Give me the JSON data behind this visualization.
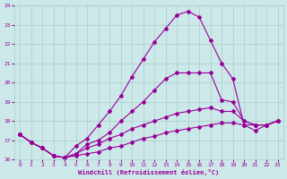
{
  "xlabel": "Windchill (Refroidissement éolien,°C)",
  "bg_color": "#cce8e8",
  "line_color": "#990099",
  "grid_color": "#aacccc",
  "text_color": "#990099",
  "xlim": [
    -0.5,
    23.5
  ],
  "ylim": [
    16,
    24
  ],
  "yticks": [
    16,
    17,
    18,
    19,
    20,
    21,
    22,
    23,
    24
  ],
  "xticks": [
    0,
    1,
    2,
    3,
    4,
    5,
    6,
    7,
    8,
    9,
    10,
    11,
    12,
    13,
    14,
    15,
    16,
    17,
    18,
    19,
    20,
    21,
    22,
    23
  ],
  "line1_x": [
    0,
    1,
    2,
    3,
    4,
    5,
    6,
    7,
    8,
    9,
    10,
    11,
    12,
    13,
    14,
    15,
    16,
    17,
    18,
    19,
    20,
    21,
    22,
    23
  ],
  "line1_y": [
    17.3,
    16.9,
    16.6,
    16.2,
    16.1,
    16.7,
    17.1,
    17.8,
    18.5,
    19.3,
    20.3,
    21.2,
    22.1,
    22.8,
    23.5,
    23.7,
    23.4,
    22.2,
    21.0,
    20.2,
    17.8,
    17.5,
    17.8,
    18.0
  ],
  "line2_x": [
    0,
    1,
    2,
    3,
    4,
    5,
    6,
    7,
    8,
    9,
    10,
    11,
    12,
    13,
    14,
    15,
    16,
    17,
    18,
    19,
    20,
    21,
    22,
    23
  ],
  "line2_y": [
    17.3,
    16.9,
    16.6,
    16.2,
    16.1,
    16.3,
    16.8,
    17.0,
    17.4,
    18.0,
    18.5,
    19.0,
    19.6,
    20.2,
    20.5,
    20.5,
    20.5,
    20.5,
    19.1,
    19.0,
    18.0,
    17.8,
    17.8,
    18.0
  ],
  "line3_x": [
    0,
    1,
    2,
    3,
    4,
    5,
    6,
    7,
    8,
    9,
    10,
    11,
    12,
    13,
    14,
    15,
    16,
    17,
    18,
    19,
    20,
    21,
    22,
    23
  ],
  "line3_y": [
    17.3,
    16.9,
    16.6,
    16.2,
    16.1,
    16.3,
    16.6,
    16.8,
    17.1,
    17.3,
    17.6,
    17.8,
    18.0,
    18.2,
    18.4,
    18.5,
    18.6,
    18.7,
    18.5,
    18.5,
    18.0,
    17.8,
    17.8,
    18.0
  ],
  "line4_x": [
    0,
    1,
    2,
    3,
    4,
    5,
    6,
    7,
    8,
    9,
    10,
    11,
    12,
    13,
    14,
    15,
    16,
    17,
    18,
    19,
    20,
    21,
    22,
    23
  ],
  "line4_y": [
    17.3,
    16.9,
    16.6,
    16.2,
    16.1,
    16.2,
    16.3,
    16.4,
    16.6,
    16.7,
    16.9,
    17.1,
    17.2,
    17.4,
    17.5,
    17.6,
    17.7,
    17.8,
    17.9,
    17.9,
    17.8,
    17.8,
    17.8,
    18.0
  ]
}
